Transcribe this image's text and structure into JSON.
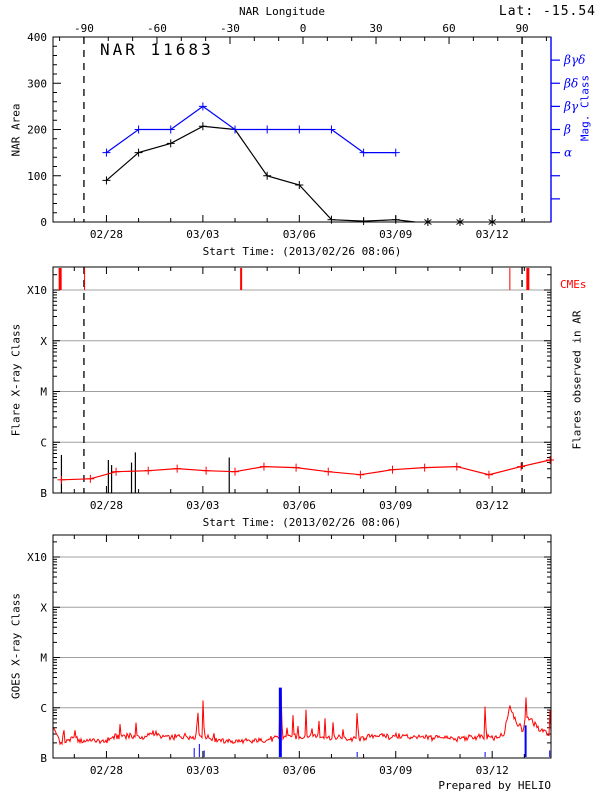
{
  "header": {
    "lat_label": "Lat: -15.54",
    "prepared_by": "Prepared by HELIO"
  },
  "colors": {
    "red": "#ff0000",
    "blue": "#0000ff",
    "black": "#000000",
    "grid": "#a0a0a0"
  },
  "time_axis": {
    "start_day": 0.3375,
    "end_day": 15.83,
    "xtitle": "Start Time: (2013/02/26 08:06)",
    "major_ticks": [
      {
        "day": 2,
        "label": "02/28"
      },
      {
        "day": 5,
        "label": "03/03"
      },
      {
        "day": 8,
        "label": "03/06"
      },
      {
        "day": 11,
        "label": "03/09"
      },
      {
        "day": 14,
        "label": "03/12"
      }
    ],
    "minor_step_days": 1,
    "limb_crossing_days": [
      1.3,
      14.93
    ]
  },
  "longitude_axis": {
    "label": "NAR Longitude",
    "major_ticks": [
      {
        "lon": -90,
        "label": "-90"
      },
      {
        "lon": -60,
        "label": "-60"
      },
      {
        "lon": -30,
        "label": "-30"
      },
      {
        "lon": 0,
        "label": "0"
      },
      {
        "lon": 30,
        "label": "30"
      },
      {
        "lon": 60,
        "label": "60"
      },
      {
        "lon": 90,
        "label": "90"
      }
    ],
    "minor_step": 10
  },
  "chart_data": [
    {
      "type": "line",
      "title": "NAR 11683",
      "ylabel": "NAR Area",
      "ylabel_right": "Mag. Class",
      "ylim": [
        0,
        400
      ],
      "yticks": [
        0,
        100,
        200,
        300,
        400
      ],
      "y_minor_step": 20,
      "right_axis_ticks": [
        {
          "value": 50,
          "label": ""
        },
        {
          "value": 100,
          "label": ""
        },
        {
          "value": 150,
          "label": "α"
        },
        {
          "value": 200,
          "label": "β"
        },
        {
          "value": 250,
          "label": "βγ"
        },
        {
          "value": 300,
          "label": "βδ"
        },
        {
          "value": 350,
          "label": "βγδ"
        }
      ],
      "series": [
        {
          "name": "nar-area",
          "color": "#000000",
          "marker": "plus",
          "points": [
            [
              2,
              90
            ],
            [
              3,
              150
            ],
            [
              4,
              170
            ],
            [
              5,
              207
            ],
            [
              6,
              200
            ],
            [
              7,
              100
            ],
            [
              8,
              80
            ],
            [
              9,
              5
            ],
            [
              10,
              2
            ],
            [
              11,
              5
            ]
          ],
          "extra_path_points": [
            [
              11.6,
              0
            ]
          ],
          "star_points": [
            [
              12,
              0
            ],
            [
              13,
              0
            ],
            [
              14,
              0
            ]
          ]
        },
        {
          "name": "mag-class",
          "color": "#0000ff",
          "marker": "plus",
          "points": [
            [
              2,
              150
            ],
            [
              3,
              200
            ],
            [
              4,
              200
            ],
            [
              5,
              250
            ],
            [
              6,
              200
            ],
            [
              7,
              200
            ],
            [
              8,
              200
            ],
            [
              9,
              200
            ],
            [
              10,
              150
            ],
            [
              11,
              150
            ]
          ],
          "extra_path_points": [],
          "star_points": []
        }
      ]
    },
    {
      "type": "line",
      "ylabel": "Flare X-ray Class",
      "ylabel_right": "Flares observed in AR",
      "cme_label": "CMEs",
      "yticks": [
        {
          "label": "B",
          "level": 0
        },
        {
          "label": "C",
          "level": 1
        },
        {
          "label": "M",
          "level": 2
        },
        {
          "label": "X",
          "level": 3
        },
        {
          "label": "X10",
          "level": 4
        }
      ],
      "cmes": [
        {
          "day": 0.56,
          "width": 3
        },
        {
          "day": 1.32,
          "width": 1
        },
        {
          "day": 6.19,
          "width": 2
        },
        {
          "day": 14.55,
          "width": 1
        },
        {
          "day": 15.11,
          "width": 3
        }
      ],
      "flare_sticks": [
        [
          0.6,
          0.75
        ],
        [
          2.06,
          0.65
        ],
        [
          2.16,
          0.55
        ],
        [
          2.78,
          0.6
        ],
        [
          2.9,
          0.8
        ],
        [
          5.82,
          0.7
        ]
      ],
      "avg_flare_line": {
        "color": "#ff0000",
        "marker": "plus",
        "points": [
          [
            0.6,
            0.26
          ],
          [
            1.5,
            0.28
          ],
          [
            2.3,
            0.42
          ],
          [
            3.3,
            0.44
          ],
          [
            4.2,
            0.48
          ],
          [
            5.1,
            0.44
          ],
          [
            6.0,
            0.42
          ],
          [
            6.9,
            0.52
          ],
          [
            7.9,
            0.5
          ],
          [
            8.9,
            0.42
          ],
          [
            9.9,
            0.36
          ],
          [
            10.9,
            0.46
          ],
          [
            11.9,
            0.5
          ],
          [
            12.9,
            0.52
          ],
          [
            13.9,
            0.36
          ],
          [
            14.9,
            0.52
          ],
          [
            15.8,
            0.65
          ]
        ]
      }
    },
    {
      "type": "line",
      "ylabel": "GOES X-ray Class",
      "yticks": [
        {
          "label": "B",
          "level": 0
        },
        {
          "label": "C",
          "level": 1
        },
        {
          "label": "M",
          "level": 2
        },
        {
          "label": "X",
          "level": 3
        },
        {
          "label": "X10",
          "level": 4
        }
      ],
      "goes_baseline_anchors": [
        [
          0.34,
          0.62
        ],
        [
          0.45,
          0.5
        ],
        [
          0.55,
          0.28
        ],
        [
          0.75,
          0.33
        ],
        [
          1.0,
          0.4
        ],
        [
          1.2,
          0.33
        ],
        [
          1.5,
          0.36
        ],
        [
          1.9,
          0.3
        ],
        [
          2.2,
          0.42
        ],
        [
          2.6,
          0.45
        ],
        [
          2.9,
          0.43
        ],
        [
          3.2,
          0.4
        ],
        [
          3.45,
          0.52
        ],
        [
          3.7,
          0.42
        ],
        [
          4.0,
          0.4
        ],
        [
          4.3,
          0.43
        ],
        [
          4.6,
          0.42
        ],
        [
          4.95,
          0.45
        ],
        [
          5.3,
          0.38
        ],
        [
          5.7,
          0.33
        ],
        [
          6.1,
          0.32
        ],
        [
          6.5,
          0.33
        ],
        [
          7.0,
          0.36
        ],
        [
          7.45,
          0.42
        ],
        [
          7.7,
          0.45
        ],
        [
          8.0,
          0.42
        ],
        [
          8.4,
          0.45
        ],
        [
          8.8,
          0.42
        ],
        [
          9.2,
          0.4
        ],
        [
          9.6,
          0.38
        ],
        [
          10.0,
          0.4
        ],
        [
          10.4,
          0.44
        ],
        [
          10.8,
          0.42
        ],
        [
          11.2,
          0.44
        ],
        [
          11.6,
          0.42
        ],
        [
          12.0,
          0.4
        ],
        [
          12.4,
          0.42
        ],
        [
          12.8,
          0.38
        ],
        [
          13.2,
          0.4
        ],
        [
          13.6,
          0.42
        ],
        [
          14.0,
          0.4
        ],
        [
          14.35,
          0.45
        ],
        [
          14.55,
          1.05
        ],
        [
          14.75,
          0.72
        ],
        [
          14.95,
          0.55
        ],
        [
          15.08,
          0.85
        ],
        [
          15.25,
          0.72
        ],
        [
          15.45,
          0.58
        ],
        [
          15.65,
          0.55
        ],
        [
          15.83,
          0.42
        ]
      ],
      "goes_spikes": [
        [
          0.66,
          0.82,
          0.05
        ],
        [
          1.02,
          0.58,
          0.04
        ],
        [
          2.42,
          0.7,
          0.05
        ],
        [
          2.62,
          0.6,
          0.04
        ],
        [
          2.92,
          0.72,
          0.05
        ],
        [
          3.3,
          0.58,
          0.04
        ],
        [
          3.5,
          0.6,
          0.04
        ],
        [
          4.45,
          0.66,
          0.04
        ],
        [
          4.83,
          1.3,
          0.05
        ],
        [
          5.0,
          1.24,
          0.05
        ],
        [
          5.35,
          0.6,
          0.04
        ],
        [
          7.41,
          2.1,
          0.045
        ],
        [
          7.6,
          0.85,
          0.05
        ],
        [
          7.8,
          0.92,
          0.05
        ],
        [
          7.95,
          0.8,
          0.04
        ],
        [
          8.2,
          1.18,
          0.04
        ],
        [
          8.38,
          0.85,
          0.04
        ],
        [
          8.6,
          0.95,
          0.05
        ],
        [
          8.8,
          0.82,
          0.04
        ],
        [
          9.05,
          0.78,
          0.04
        ],
        [
          9.35,
          0.72,
          0.04
        ],
        [
          9.8,
          1.16,
          0.04
        ],
        [
          10.55,
          0.62,
          0.04
        ],
        [
          11.3,
          0.66,
          0.04
        ],
        [
          11.95,
          0.6,
          0.04
        ],
        [
          12.7,
          0.62,
          0.04
        ],
        [
          13.78,
          1.2,
          0.04
        ],
        [
          15.04,
          1.54,
          0.05
        ],
        [
          15.79,
          1.14,
          0.05
        ]
      ],
      "blue_events": [
        {
          "day": 4.73,
          "level": 0.2,
          "width": 1
        },
        {
          "day": 4.89,
          "level": 0.28,
          "width": 1
        },
        {
          "day": 5.04,
          "level": 0.15,
          "width": 1
        },
        {
          "day": 7.41,
          "level": 1.4,
          "width": 3
        },
        {
          "day": 9.8,
          "level": 0.12,
          "width": 1
        },
        {
          "day": 13.78,
          "level": 0.12,
          "width": 1
        },
        {
          "day": 15.04,
          "level": 0.65,
          "width": 2
        },
        {
          "day": 15.79,
          "level": 0.15,
          "width": 1
        }
      ]
    }
  ]
}
